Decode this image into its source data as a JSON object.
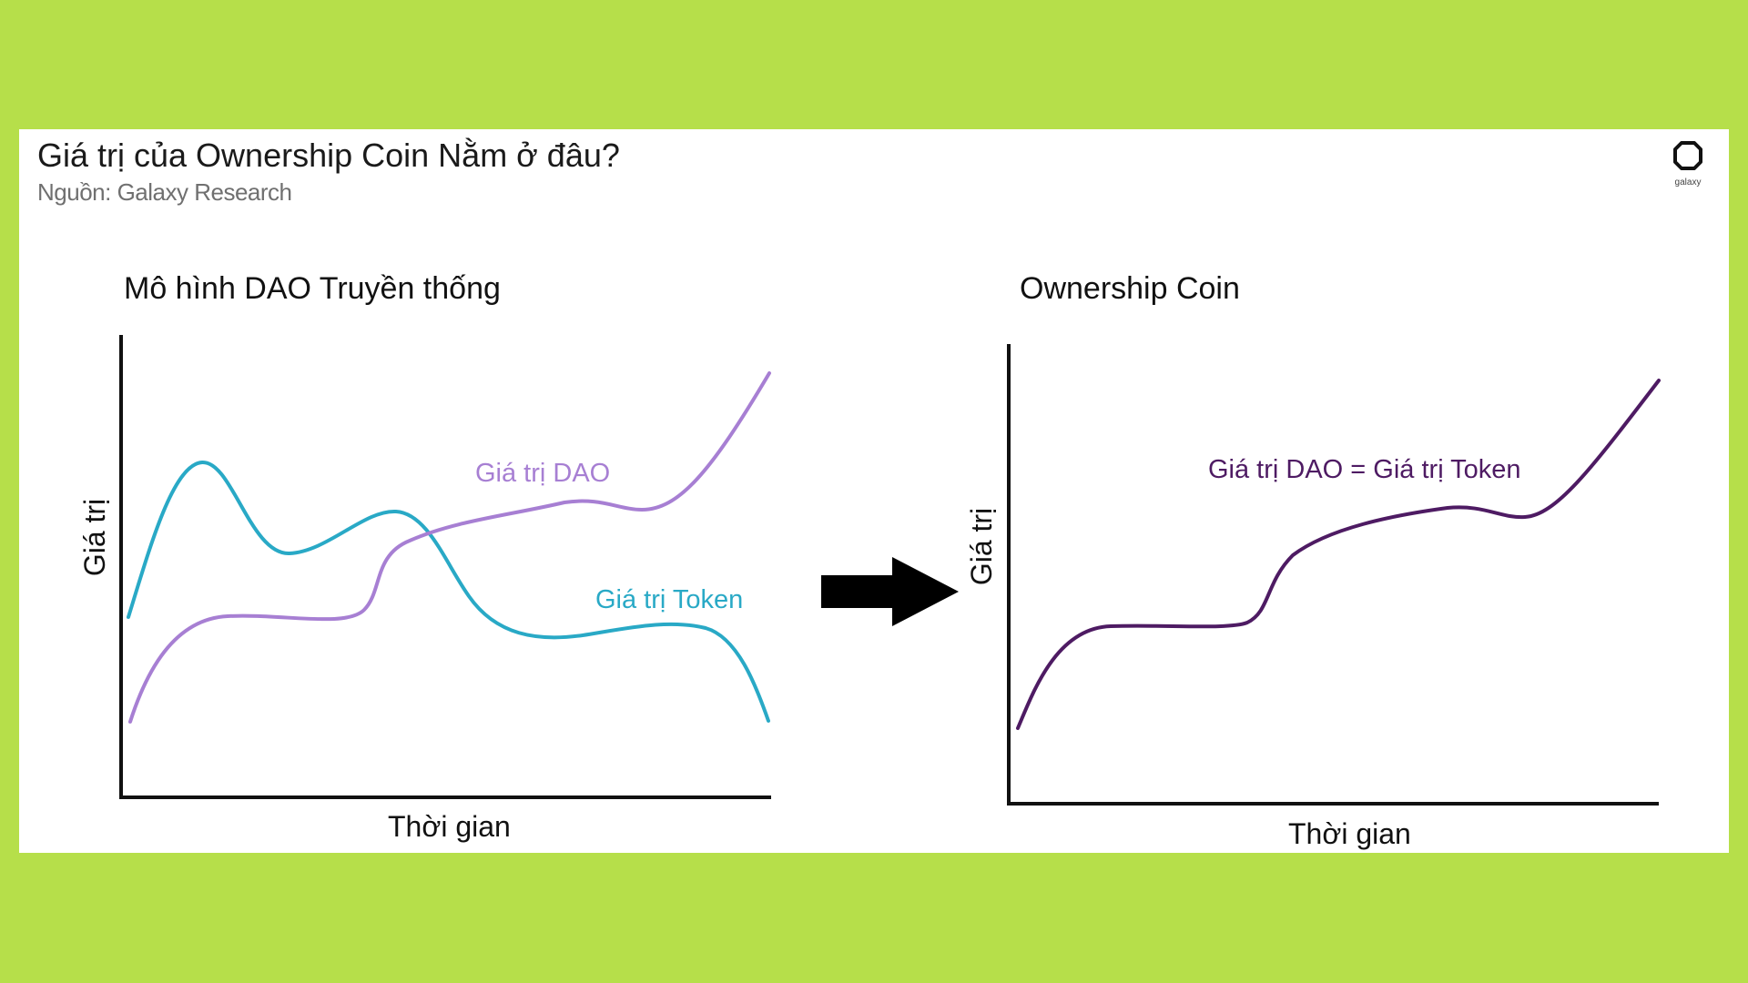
{
  "header": {
    "title": "Giá trị của Ownership Coin Nằm ở đâu?",
    "source": "Nguồn: Galaxy Research",
    "logo_text": "galaxy",
    "logo_icon": "galaxy-logo-icon"
  },
  "colors": {
    "background": "#b6df4a",
    "dao_value": "#a77fd3",
    "token_value": "#29a9c6",
    "ownership_value": "#4e1b63",
    "arrow": "#000000"
  },
  "left_panel": {
    "title": "Mô hình DAO Truyền thống",
    "y_label": "Giá trị",
    "x_label": "Thời gian",
    "dao_label": "Giá trị DAO",
    "token_label": "Giá trị Token"
  },
  "arrow": {
    "icon": "right-arrow-icon"
  },
  "right_panel": {
    "title": "Ownership Coin",
    "y_label": "Giá trị",
    "x_label": "Thời gian",
    "combined_label": "Giá trị DAO = Giá trị Token"
  }
}
